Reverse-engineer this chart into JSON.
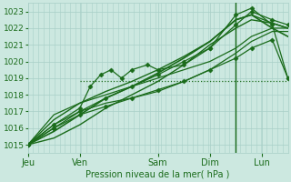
{
  "title": "",
  "xlabel": "Pression niveau de la mer( hPa )",
  "ylabel": "",
  "ylim": [
    1014.5,
    1023.5
  ],
  "xlim": [
    0.0,
    5.0
  ],
  "yticks": [
    1015,
    1016,
    1017,
    1018,
    1019,
    1020,
    1021,
    1022,
    1023
  ],
  "xtick_positions": [
    0.0,
    1.0,
    2.5,
    3.5,
    4.5
  ],
  "xtick_labels": [
    "Jeu",
    "Ven",
    "Sam",
    "Dim",
    "Lun"
  ],
  "bg_color": "#cce8e0",
  "grid_color": "#a8cfc7",
  "line_color": "#1a6b1a",
  "line_width": 0.9,
  "vline_x": 4.0,
  "vline_color": "#1a6b1a",
  "hline_y": 1018.8,
  "hline_xstart": 1.0,
  "hline_color": "#1a6b1a",
  "lines": [
    {
      "x": [
        0.0,
        0.5,
        1.0,
        1.5,
        2.0,
        2.5,
        3.0,
        3.5,
        4.0,
        4.3,
        4.7,
        5.0
      ],
      "y": [
        1015.0,
        1015.4,
        1016.2,
        1017.2,
        1018.0,
        1018.8,
        1019.8,
        1021.0,
        1022.0,
        1022.5,
        1022.3,
        1022.0
      ],
      "dashed": false,
      "marker": null,
      "lw": 1.0
    },
    {
      "x": [
        0.0,
        0.5,
        1.0,
        1.5,
        2.0,
        2.5,
        3.0,
        3.5,
        4.0,
        4.3,
        4.7,
        5.0
      ],
      "y": [
        1015.0,
        1015.8,
        1016.8,
        1017.8,
        1018.5,
        1019.3,
        1020.2,
        1021.2,
        1022.5,
        1022.8,
        1022.0,
        1021.5
      ],
      "dashed": false,
      "marker": null,
      "lw": 1.2
    },
    {
      "x": [
        0.0,
        0.5,
        1.0,
        1.5,
        2.0,
        2.5,
        3.0,
        3.5,
        4.0,
        4.3,
        4.7,
        5.0
      ],
      "y": [
        1015.0,
        1016.0,
        1017.0,
        1017.8,
        1018.5,
        1019.2,
        1020.0,
        1020.8,
        1022.2,
        1023.0,
        1022.5,
        1022.2
      ],
      "dashed": false,
      "marker": "D",
      "lw": 0.9
    },
    {
      "x": [
        0.0,
        0.5,
        1.0,
        1.2,
        1.4,
        1.6,
        1.8,
        2.0,
        2.3,
        2.5,
        3.0,
        3.5,
        4.0,
        4.3,
        4.7,
        5.0
      ],
      "y": [
        1015.0,
        1016.2,
        1017.2,
        1018.5,
        1019.2,
        1019.5,
        1019.0,
        1019.5,
        1019.8,
        1019.5,
        1019.8,
        1020.8,
        1022.8,
        1023.2,
        1022.2,
        1019.0
      ],
      "dashed": false,
      "marker": "D",
      "lw": 0.9
    },
    {
      "x": [
        0.0,
        0.5,
        1.0,
        1.5,
        2.0,
        2.5,
        3.0,
        3.5,
        4.0,
        4.3,
        4.7,
        5.0
      ],
      "y": [
        1015.0,
        1016.5,
        1017.5,
        1018.2,
        1018.8,
        1019.5,
        1020.3,
        1021.2,
        1022.5,
        1022.8,
        1022.3,
        1022.0
      ],
      "dashed": false,
      "marker": null,
      "lw": 1.0
    },
    {
      "x": [
        0.0,
        0.5,
        1.0,
        1.5,
        2.0,
        2.5,
        3.0,
        3.5,
        4.0,
        4.3,
        4.7,
        5.0
      ],
      "y": [
        1015.0,
        1016.8,
        1017.5,
        1018.0,
        1018.5,
        1019.0,
        1019.5,
        1020.0,
        1020.8,
        1021.5,
        1022.0,
        1022.0
      ],
      "dashed": false,
      "marker": null,
      "lw": 0.9
    },
    {
      "x": [
        0.0,
        0.5,
        1.0,
        1.5,
        2.0,
        2.5,
        3.0,
        3.5,
        4.0,
        4.3,
        4.7,
        5.0
      ],
      "y": [
        1015.0,
        1016.2,
        1017.0,
        1017.5,
        1017.8,
        1018.2,
        1018.8,
        1019.5,
        1020.5,
        1021.2,
        1021.8,
        1021.8
      ],
      "dashed": false,
      "marker": null,
      "lw": 0.9
    },
    {
      "x": [
        1.0,
        2.0,
        2.5,
        3.0,
        3.5,
        4.0,
        4.3,
        4.7,
        5.0
      ],
      "y": [
        1018.8,
        1018.8,
        1018.8,
        1018.8,
        1018.8,
        1018.8,
        1018.8,
        1018.8,
        1018.8
      ],
      "dashed": true,
      "marker": null,
      "lw": 0.9
    },
    {
      "x": [
        0.0,
        0.5,
        1.0,
        1.5,
        2.0,
        2.5,
        3.0,
        3.5,
        4.0,
        4.3,
        4.7,
        5.0
      ],
      "y": [
        1015.0,
        1016.0,
        1016.8,
        1017.3,
        1017.8,
        1018.3,
        1018.8,
        1019.5,
        1020.2,
        1020.8,
        1021.3,
        1019.0
      ],
      "dashed": false,
      "marker": "D",
      "lw": 0.9
    }
  ]
}
